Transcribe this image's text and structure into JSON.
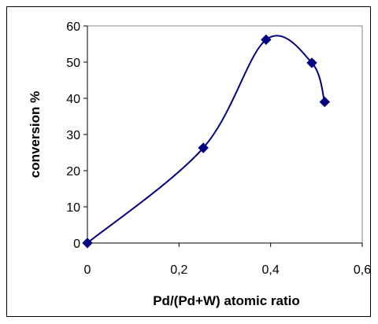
{
  "chart_data": {
    "type": "line",
    "title": "",
    "xlabel": "Pd/(Pd+W) atomic ratio",
    "ylabel": "conversion %",
    "xlim": [
      0,
      0.6
    ],
    "ylim": [
      0,
      60
    ],
    "x_ticks": [
      0,
      0.2,
      0.4,
      0.6
    ],
    "x_tick_labels": [
      "0",
      "0,2",
      "0,4",
      "0,6"
    ],
    "y_ticks": [
      0,
      10,
      20,
      30,
      40,
      50,
      60
    ],
    "y_tick_labels": [
      "0",
      "10",
      "20",
      "30",
      "40",
      "50",
      "60"
    ],
    "grid": false,
    "legend": "none",
    "smoothed": true,
    "marker": "diamond",
    "series": [
      {
        "color": "#000080",
        "x": [
          0,
          0.253,
          0.39,
          0.49,
          0.518
        ],
        "y": [
          0,
          26.3,
          56.2,
          49.8,
          39.0
        ]
      }
    ]
  }
}
